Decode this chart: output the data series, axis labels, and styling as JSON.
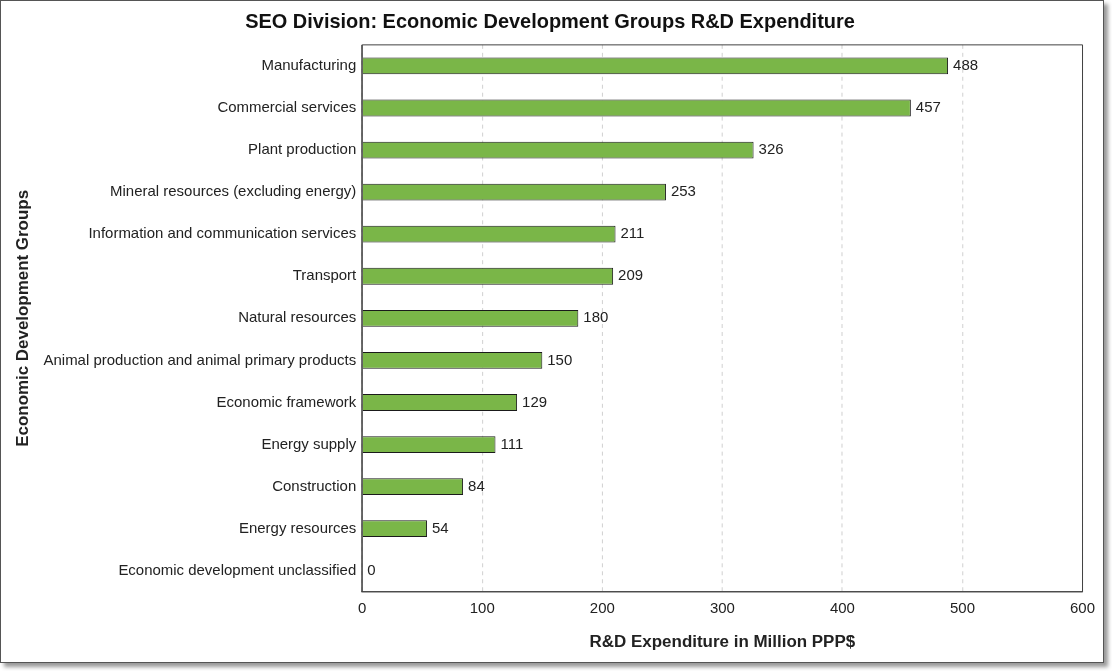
{
  "chart_data": {
    "type": "bar",
    "orientation": "horizontal",
    "title": "SEO Division: Economic Development Groups R&D Expenditure",
    "xlabel": "R&D Expenditure in Million PPP$",
    "ylabel": "Economic Development Groups",
    "categories": [
      "Manufacturing",
      "Commercial services",
      "Plant production",
      "Mineral resources (excluding energy)",
      "Information and communication services",
      "Transport",
      "Natural resources",
      "Animal production and animal primary products",
      "Economic framework",
      "Energy supply",
      "Construction",
      "Energy resources",
      "Economic development unclassified"
    ],
    "values": [
      488,
      457,
      326,
      253,
      211,
      209,
      180,
      150,
      129,
      111,
      84,
      54,
      0
    ],
    "color": "#7ab648",
    "xlim": [
      0,
      600
    ],
    "xticks": [
      0,
      100,
      200,
      300,
      400,
      500,
      600
    ],
    "grid": "x",
    "data_labels": true,
    "legend": false
  }
}
